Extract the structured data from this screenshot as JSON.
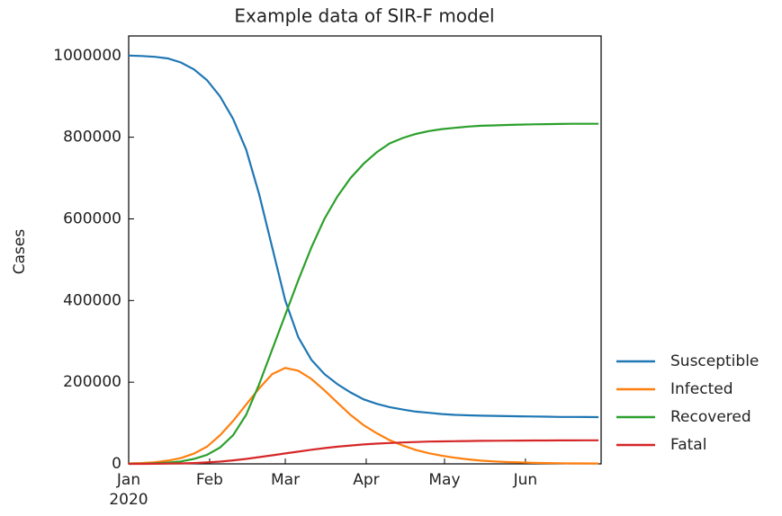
{
  "chart_data": {
    "type": "line",
    "title": "Example data of SIR-F model",
    "ylabel": "Cases",
    "x_year_label": "2020",
    "x": [
      "2020-01-01",
      "2020-01-06",
      "2020-01-11",
      "2020-01-16",
      "2020-01-21",
      "2020-01-26",
      "2020-01-31",
      "2020-02-05",
      "2020-02-10",
      "2020-02-15",
      "2020-02-20",
      "2020-02-25",
      "2020-03-01",
      "2020-03-06",
      "2020-03-11",
      "2020-03-16",
      "2020-03-21",
      "2020-03-26",
      "2020-03-31",
      "2020-04-05",
      "2020-04-10",
      "2020-04-15",
      "2020-04-20",
      "2020-04-25",
      "2020-04-30",
      "2020-05-05",
      "2020-05-10",
      "2020-05-15",
      "2020-05-20",
      "2020-05-25",
      "2020-05-30",
      "2020-06-04",
      "2020-06-09",
      "2020-06-14",
      "2020-06-19",
      "2020-06-24",
      "2020-06-29"
    ],
    "series": [
      {
        "name": "Susceptible",
        "color": "#1f77b4",
        "values": [
          1000000,
          999000,
          997000,
          993000,
          983000,
          966000,
          940000,
          900000,
          845000,
          770000,
          660000,
          530000,
          400000,
          310000,
          255000,
          220000,
          195000,
          175000,
          158000,
          147000,
          139000,
          133000,
          128000,
          125000,
          122000,
          120000,
          119000,
          118000,
          117500,
          117000,
          116500,
          116000,
          115500,
          115000,
          115000,
          114800,
          114500
        ]
      },
      {
        "name": "Infected",
        "color": "#ff7f0e",
        "values": [
          1000,
          2000,
          4000,
          8000,
          14000,
          25000,
          42000,
          70000,
          105000,
          145000,
          185000,
          220000,
          235000,
          228000,
          208000,
          180000,
          150000,
          120000,
          95000,
          75000,
          58000,
          45000,
          34000,
          26000,
          20000,
          15000,
          11000,
          8000,
          6000,
          4500,
          3500,
          2500,
          2000,
          1500,
          1200,
          1000,
          800
        ]
      },
      {
        "name": "Recovered",
        "color": "#2ca02c",
        "values": [
          0,
          500,
          1500,
          3000,
          6000,
          12000,
          22000,
          40000,
          70000,
          120000,
          195000,
          280000,
          365000,
          450000,
          530000,
          600000,
          655000,
          700000,
          735000,
          763000,
          785000,
          798000,
          808000,
          815000,
          820000,
          823000,
          826000,
          828000,
          829000,
          830000,
          831000,
          831500,
          832000,
          832500,
          833000,
          833000,
          833000
        ]
      },
      {
        "name": "Fatal",
        "color": "#d62728",
        "values": [
          0,
          100,
          300,
          600,
          1200,
          2000,
          3500,
          5500,
          8500,
          12000,
          16500,
          21000,
          25500,
          30000,
          34500,
          38500,
          42000,
          45000,
          47500,
          49500,
          51000,
          52500,
          53500,
          54500,
          55000,
          55500,
          56000,
          56300,
          56600,
          56800,
          57000,
          57200,
          57300,
          57400,
          57500,
          57600,
          57700
        ]
      }
    ],
    "xlim": [
      "2020-01-01",
      "2020-06-30"
    ],
    "xticks": [
      {
        "value": "2020-01-01",
        "label": "Jan"
      },
      {
        "value": "2020-02-01",
        "label": "Feb"
      },
      {
        "value": "2020-03-01",
        "label": "Mar"
      },
      {
        "value": "2020-04-01",
        "label": "Apr"
      },
      {
        "value": "2020-05-01",
        "label": "May"
      },
      {
        "value": "2020-06-01",
        "label": "Jun"
      }
    ],
    "ylim": [
      0,
      1048000
    ],
    "yticks": [
      0,
      200000,
      400000,
      600000,
      800000,
      1000000
    ],
    "grid": false,
    "legend": "right outside"
  }
}
